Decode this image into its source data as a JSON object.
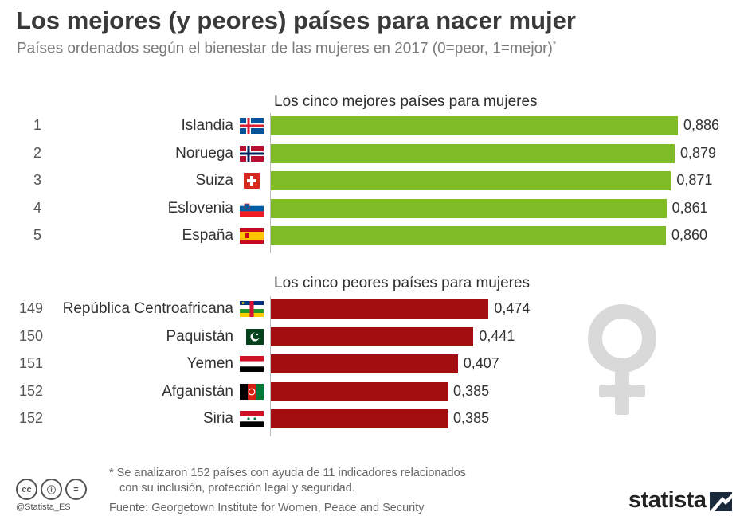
{
  "title": "Los mejores (y peores) países para nacer mujer",
  "subtitle": "Países ordenados según el bienestar de las mujeres en 2017 (0=peor, 1=mejor)",
  "subtitle_mark": "*",
  "colors": {
    "top": "#80bb28",
    "bottom": "#a30f10",
    "axis": "#bdbdbd",
    "venus": "#d9d9d9"
  },
  "chart_data": [
    {
      "type": "bar",
      "title": "Los cinco mejores países para mujeres",
      "categories": [
        "Islandia",
        "Noruega",
        "Suiza",
        "Eslovenia",
        "España"
      ],
      "ranks": [
        "1",
        "2",
        "3",
        "4",
        "5"
      ],
      "values": [
        0.886,
        0.879,
        0.871,
        0.861,
        0.86
      ],
      "labels": [
        "0,886",
        "0,879",
        "0,871",
        "0,861",
        "0,860"
      ],
      "flags": [
        "iceland-flag",
        "norway-flag",
        "switzerland-flag",
        "slovenia-flag",
        "spain-flag"
      ],
      "color": "#80bb28",
      "orientation": "horizontal",
      "xlim": [
        0,
        0.886
      ]
    },
    {
      "type": "bar",
      "title": "Los cinco peores países para mujeres",
      "categories": [
        "República Centroafricana",
        "Paquistán",
        "Yemen",
        "Afganistán",
        "Siria"
      ],
      "ranks": [
        "149",
        "150",
        "151",
        "152",
        "152"
      ],
      "values": [
        0.474,
        0.441,
        0.407,
        0.385,
        0.385
      ],
      "labels": [
        "0,474",
        "0,441",
        "0,407",
        "0,385",
        "0,385"
      ],
      "flags": [
        "central-african-republic-flag",
        "pakistan-flag",
        "yemen-flag",
        "afghanistan-flag",
        "syria-flag"
      ],
      "color": "#a30f10",
      "orientation": "horizontal",
      "xlim": [
        0,
        0.886
      ]
    }
  ],
  "footnote_line1": "* Se analizaron 152 países con ayuda de 11 indicadores relacionados",
  "footnote_line2": "con su inclusión, protección legal y seguridad.",
  "source": "Fuente: Georgetown Institute for Women, Peace and Security",
  "license_icons": [
    "cc",
    "ⓘ",
    "="
  ],
  "handle": "@Statista_ES",
  "brand": "statista"
}
